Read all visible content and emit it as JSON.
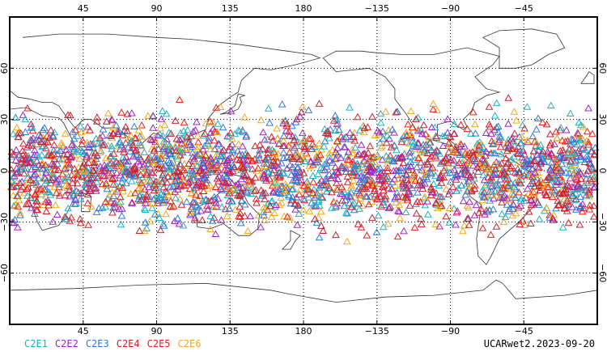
{
  "map": {
    "projection": "cylindrical equidistant",
    "center_longitude": 180,
    "lat_range": [
      -90,
      90
    ],
    "gridline_style": "dotted",
    "marker_shape": "open-triangle",
    "lon_ticks": [
      {
        "lon": 45,
        "label": "45"
      },
      {
        "lon": 90,
        "label": "90"
      },
      {
        "lon": 135,
        "label": "135"
      },
      {
        "lon": 180,
        "label": "180"
      },
      {
        "lon": 225,
        "label": "−135"
      },
      {
        "lon": 270,
        "label": "−90"
      },
      {
        "lon": 315,
        "label": "−45"
      }
    ],
    "lat_ticks": [
      {
        "lat": 60,
        "label": "60"
      },
      {
        "lat": 30,
        "label": "30"
      },
      {
        "lat": 0,
        "label": "0"
      },
      {
        "lat": -30,
        "label": "−30"
      },
      {
        "lat": -60,
        "label": "−60"
      }
    ]
  },
  "legend": {
    "items": [
      {
        "label": "C2E1",
        "color": "#1fb2c6"
      },
      {
        "label": "C2E2",
        "color": "#9b25c9"
      },
      {
        "label": "C2E3",
        "color": "#2f7ad9"
      },
      {
        "label": "C2E4",
        "color": "#c8202b"
      },
      {
        "label": "C2E5",
        "color": "#ee1c1c"
      },
      {
        "label": "C2E6",
        "color": "#f0a91a"
      }
    ]
  },
  "stamp": "UCARwet2.2023-09-20"
}
